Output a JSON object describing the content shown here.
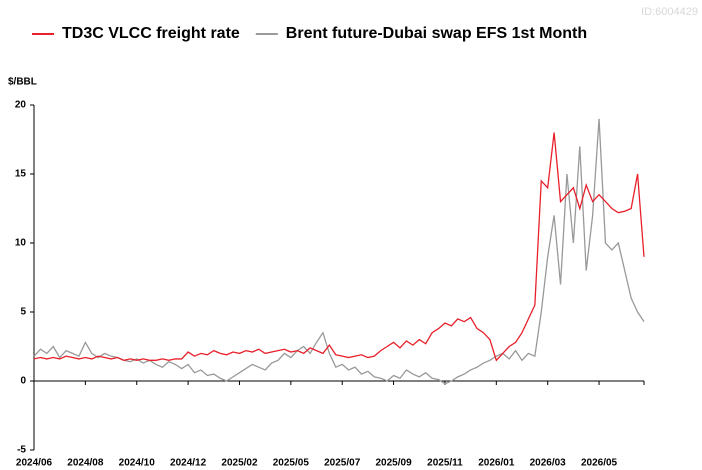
{
  "chart_data": {
    "type": "line",
    "watermark": "ID:6004429",
    "y_label": "$/BBL",
    "categories": [
      "2024/06",
      null,
      null,
      null,
      null,
      null,
      null,
      null,
      "2024/08",
      null,
      null,
      null,
      null,
      null,
      null,
      null,
      "2024/10",
      null,
      null,
      null,
      null,
      null,
      null,
      null,
      "2024/12",
      null,
      null,
      null,
      null,
      null,
      null,
      null,
      "2025/02",
      null,
      null,
      null,
      null,
      null,
      null,
      null,
      "2025/05",
      null,
      null,
      null,
      null,
      null,
      null,
      null,
      "2025/07",
      null,
      null,
      null,
      null,
      null,
      null,
      null,
      "2025/09",
      null,
      null,
      null,
      null,
      null,
      null,
      null,
      "2025/11",
      null,
      null,
      null,
      null,
      null,
      null,
      null,
      "2026/01",
      null,
      null,
      null,
      null,
      null,
      null,
      null,
      "2026/03",
      null,
      null,
      null,
      null,
      null,
      null,
      null,
      "2026/05",
      null,
      null,
      null,
      null,
      null,
      null,
      null
    ],
    "series": [
      {
        "name": "TD3C VLCC freight rate",
        "color": "#e8202a",
        "values": [
          1.6,
          1.7,
          1.6,
          1.7,
          1.6,
          1.8,
          1.7,
          1.6,
          1.7,
          1.6,
          1.8,
          1.7,
          1.6,
          1.7,
          1.5,
          1.6,
          1.5,
          1.6,
          1.5,
          1.5,
          1.6,
          1.5,
          1.6,
          1.6,
          2.1,
          1.8,
          2.0,
          1.9,
          2.2,
          2.0,
          1.9,
          2.1,
          2.0,
          2.2,
          2.1,
          2.3,
          2.0,
          2.1,
          2.2,
          2.3,
          2.1,
          2.2,
          2.0,
          2.4,
          2.2,
          2.0,
          2.6,
          1.9,
          1.8,
          1.7,
          1.8,
          1.9,
          1.7,
          1.8,
          2.2,
          2.5,
          2.8,
          2.4,
          2.9,
          2.6,
          3.0,
          2.7,
          3.5,
          3.8,
          4.2,
          4.0,
          4.5,
          4.3,
          4.6,
          3.8,
          3.5,
          3.0,
          1.5,
          2.0,
          2.5,
          2.8,
          3.5,
          4.5,
          5.5,
          14.5,
          14.0,
          18.0,
          13.0,
          13.5,
          14.0,
          12.5,
          14.2,
          13.0,
          13.5,
          13.0,
          12.5,
          12.2,
          12.3,
          12.5,
          15.0,
          9.0
        ]
      },
      {
        "name": "Brent future-Dubai swap EFS 1st Month",
        "color": "#999999",
        "values": [
          1.8,
          2.3,
          2.0,
          2.5,
          1.7,
          2.2,
          2.0,
          1.8,
          2.8,
          2.0,
          1.7,
          2.0,
          1.8,
          1.7,
          1.5,
          1.4,
          1.6,
          1.3,
          1.5,
          1.2,
          1.0,
          1.4,
          1.2,
          0.9,
          1.2,
          0.6,
          0.8,
          0.4,
          0.5,
          0.2,
          0.0,
          0.3,
          0.6,
          0.9,
          1.2,
          1.0,
          0.8,
          1.3,
          1.5,
          2.0,
          1.7,
          2.2,
          2.5,
          2.0,
          2.8,
          3.5,
          2.0,
          1.0,
          1.2,
          0.8,
          1.0,
          0.5,
          0.7,
          0.3,
          0.2,
          0.0,
          0.4,
          0.2,
          0.8,
          0.5,
          0.3,
          0.6,
          0.2,
          0.1,
          -0.2,
          0.0,
          0.3,
          0.5,
          0.8,
          1.0,
          1.3,
          1.5,
          1.8,
          2.0,
          1.6,
          2.2,
          1.5,
          2.0,
          1.8,
          5.0,
          9.0,
          12.0,
          7.0,
          15.0,
          10.0,
          17.0,
          8.0,
          12.0,
          19.0,
          10.0,
          9.5,
          10.0,
          8.0,
          6.0,
          5.0,
          4.3
        ]
      }
    ],
    "ylim": [
      -5,
      20
    ],
    "yticks": [
      -5,
      0,
      5,
      10,
      15,
      20
    ]
  }
}
